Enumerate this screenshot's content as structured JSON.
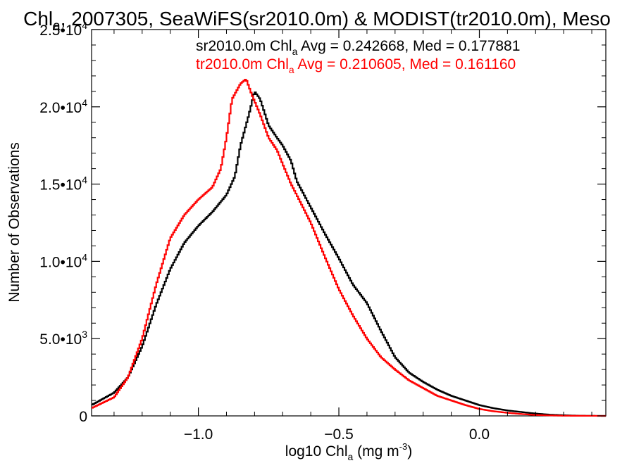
{
  "chart_data": {
    "type": "line",
    "title": {
      "pre": "Chl",
      "sub": "a",
      "post": ", 2007305, SeaWiFS(sr2010.0m) & MODIST(tr2010.0m), Meso"
    },
    "xlabel": {
      "pre": "log10 Chl",
      "sub": "a",
      "mid": " (mg m",
      "sup": "-3",
      "post": ")"
    },
    "ylabel": "Number of Observations",
    "xlim": [
      -1.38,
      0.45
    ],
    "ylim": [
      0,
      25000
    ],
    "xticks": [
      {
        "value": -1.0,
        "label": "−1.0"
      },
      {
        "value": -0.5,
        "label": "−0.5"
      },
      {
        "value": 0.0,
        "label": "0.0"
      }
    ],
    "yticks": [
      {
        "value": 0,
        "mant": "0",
        "exp": ""
      },
      {
        "value": 5000,
        "mant": "5.0•10",
        "exp": "3"
      },
      {
        "value": 10000,
        "mant": "1.0•10",
        "exp": "4"
      },
      {
        "value": 15000,
        "mant": "1.5•10",
        "exp": "4"
      },
      {
        "value": 20000,
        "mant": "2.0•10",
        "exp": "4"
      },
      {
        "value": 25000,
        "mant": "2.5•10",
        "exp": "4"
      }
    ],
    "grid": false,
    "legend_position": "top-right",
    "series": [
      {
        "color": "#000000",
        "stat_pre": "sr2010.0m Chl",
        "stat_sub": "a",
        "stat_post": " Avg = 0.242668, Med = 0.177881",
        "points": [
          [
            -1.38,
            700
          ],
          [
            -1.3,
            1500
          ],
          [
            -1.25,
            2500
          ],
          [
            -1.2,
            4500
          ],
          [
            -1.15,
            7200
          ],
          [
            -1.1,
            9500
          ],
          [
            -1.05,
            11200
          ],
          [
            -1.0,
            12300
          ],
          [
            -0.95,
            13200
          ],
          [
            -0.9,
            14300
          ],
          [
            -0.87,
            15500
          ],
          [
            -0.85,
            17500
          ],
          [
            -0.82,
            19500
          ],
          [
            -0.8,
            21000
          ],
          [
            -0.78,
            20500
          ],
          [
            -0.75,
            18800
          ],
          [
            -0.72,
            18000
          ],
          [
            -0.7,
            17500
          ],
          [
            -0.67,
            16500
          ],
          [
            -0.65,
            15200
          ],
          [
            -0.6,
            13500
          ],
          [
            -0.55,
            11800
          ],
          [
            -0.5,
            10200
          ],
          [
            -0.45,
            8500
          ],
          [
            -0.4,
            7300
          ],
          [
            -0.35,
            5500
          ],
          [
            -0.3,
            3800
          ],
          [
            -0.25,
            2800
          ],
          [
            -0.2,
            2200
          ],
          [
            -0.15,
            1700
          ],
          [
            -0.1,
            1300
          ],
          [
            -0.05,
            1000
          ],
          [
            0.0,
            700
          ],
          [
            0.05,
            500
          ],
          [
            0.1,
            350
          ],
          [
            0.15,
            250
          ],
          [
            0.2,
            150
          ],
          [
            0.25,
            80
          ],
          [
            0.3,
            40
          ],
          [
            0.35,
            15
          ],
          [
            0.4,
            5
          ],
          [
            0.45,
            0
          ]
        ]
      },
      {
        "color": "#ff0000",
        "stat_pre": "tr2010.0m Chl",
        "stat_sub": "a",
        "stat_post": " Avg = 0.210605, Med = 0.161160",
        "points": [
          [
            -1.38,
            500
          ],
          [
            -1.3,
            1200
          ],
          [
            -1.25,
            2500
          ],
          [
            -1.2,
            5000
          ],
          [
            -1.15,
            8500
          ],
          [
            -1.1,
            11500
          ],
          [
            -1.05,
            13000
          ],
          [
            -1.0,
            14000
          ],
          [
            -0.95,
            14800
          ],
          [
            -0.92,
            16000
          ],
          [
            -0.9,
            18000
          ],
          [
            -0.88,
            20500
          ],
          [
            -0.85,
            21500
          ],
          [
            -0.83,
            21800
          ],
          [
            -0.81,
            20800
          ],
          [
            -0.78,
            19500
          ],
          [
            -0.75,
            18000
          ],
          [
            -0.72,
            17200
          ],
          [
            -0.7,
            16300
          ],
          [
            -0.67,
            15000
          ],
          [
            -0.65,
            14300
          ],
          [
            -0.6,
            12500
          ],
          [
            -0.55,
            10300
          ],
          [
            -0.5,
            8200
          ],
          [
            -0.45,
            6500
          ],
          [
            -0.4,
            5000
          ],
          [
            -0.35,
            3800
          ],
          [
            -0.3,
            3000
          ],
          [
            -0.25,
            2300
          ],
          [
            -0.2,
            1800
          ],
          [
            -0.15,
            1300
          ],
          [
            -0.1,
            1000
          ],
          [
            -0.05,
            700
          ],
          [
            0.0,
            450
          ],
          [
            0.05,
            300
          ],
          [
            0.1,
            200
          ],
          [
            0.15,
            120
          ],
          [
            0.2,
            60
          ],
          [
            0.25,
            30
          ],
          [
            0.3,
            10
          ],
          [
            0.35,
            5
          ],
          [
            0.45,
            0
          ]
        ]
      }
    ]
  }
}
